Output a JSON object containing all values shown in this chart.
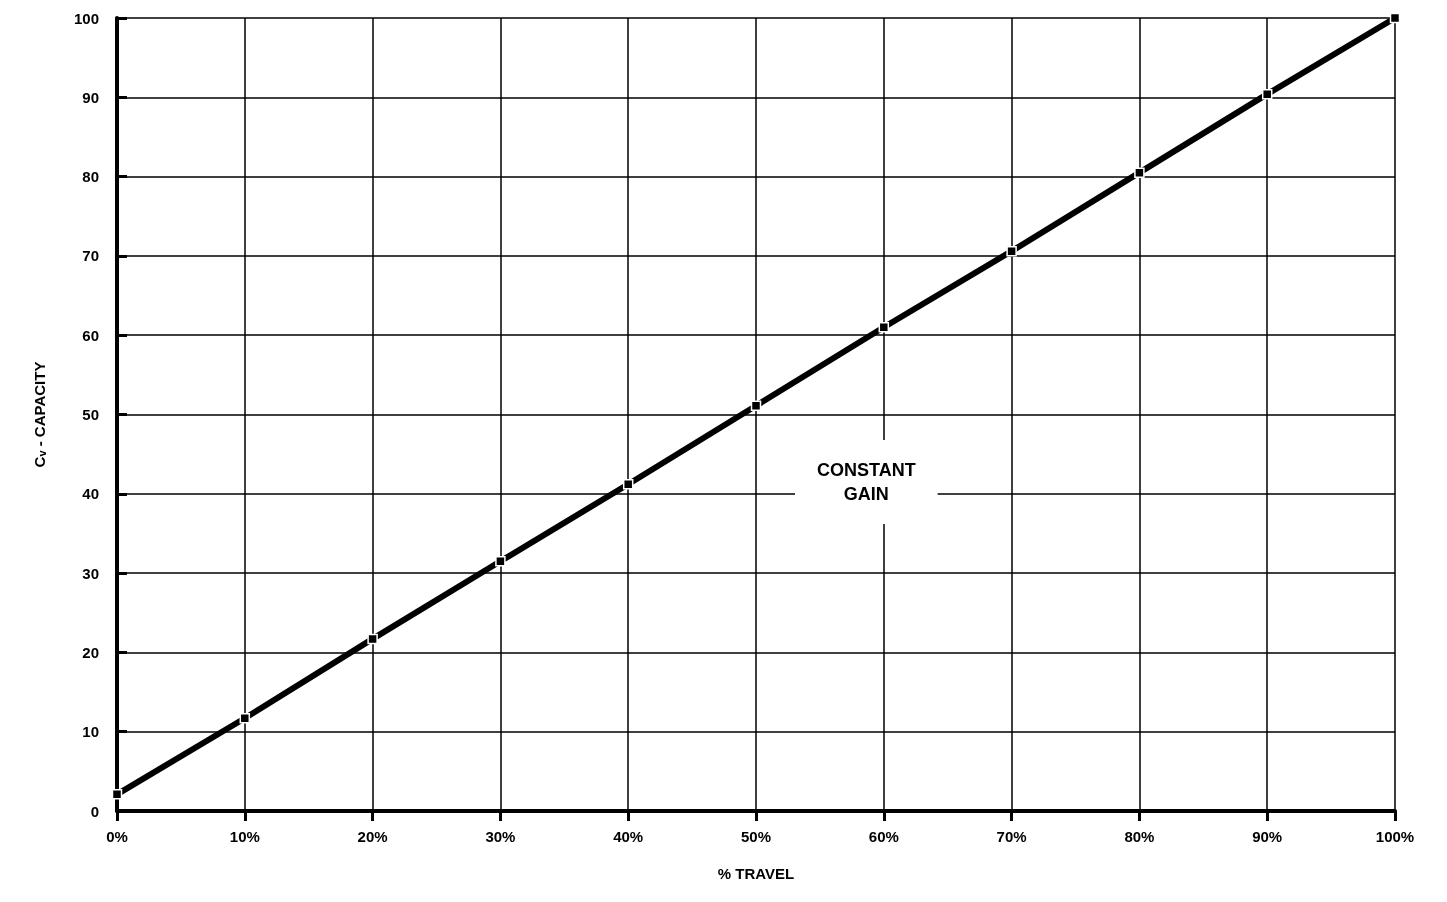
{
  "chart_data": {
    "type": "line",
    "xlabel": "% TRAVEL",
    "ylabel": "C$_{v}$ - CAPACITY",
    "x": [
      0,
      10,
      20,
      30,
      40,
      50,
      60,
      70,
      80,
      90,
      100
    ],
    "series": [
      {
        "color": "#000000",
        "values": [
          2.1,
          11.7,
          21.7,
          31.5,
          41.2,
          51.1,
          61.0,
          70.6,
          80.5,
          90.4,
          100
        ]
      }
    ],
    "xlim": [
      0,
      100
    ],
    "xticks": [
      {
        "value": 0,
        "label": "0%"
      },
      {
        "value": 10,
        "label": "10%"
      },
      {
        "value": 20,
        "label": "20%"
      },
      {
        "value": 30,
        "label": "30%"
      },
      {
        "value": 40,
        "label": "40%"
      },
      {
        "value": 50,
        "label": "50%"
      },
      {
        "value": 60,
        "label": "60%"
      },
      {
        "value": 70,
        "label": "70%"
      },
      {
        "value": 80,
        "label": "80%"
      },
      {
        "value": 90,
        "label": "90%"
      },
      {
        "value": 100,
        "label": "100%"
      }
    ],
    "ylim": [
      0,
      100
    ],
    "yticks": [
      0,
      10,
      20,
      30,
      40,
      50,
      60,
      70,
      80,
      90,
      100
    ],
    "grid": true,
    "marker": "square",
    "line_style": "solid",
    "annotations": [
      "CONSTANT\nGAIN"
    ]
  }
}
